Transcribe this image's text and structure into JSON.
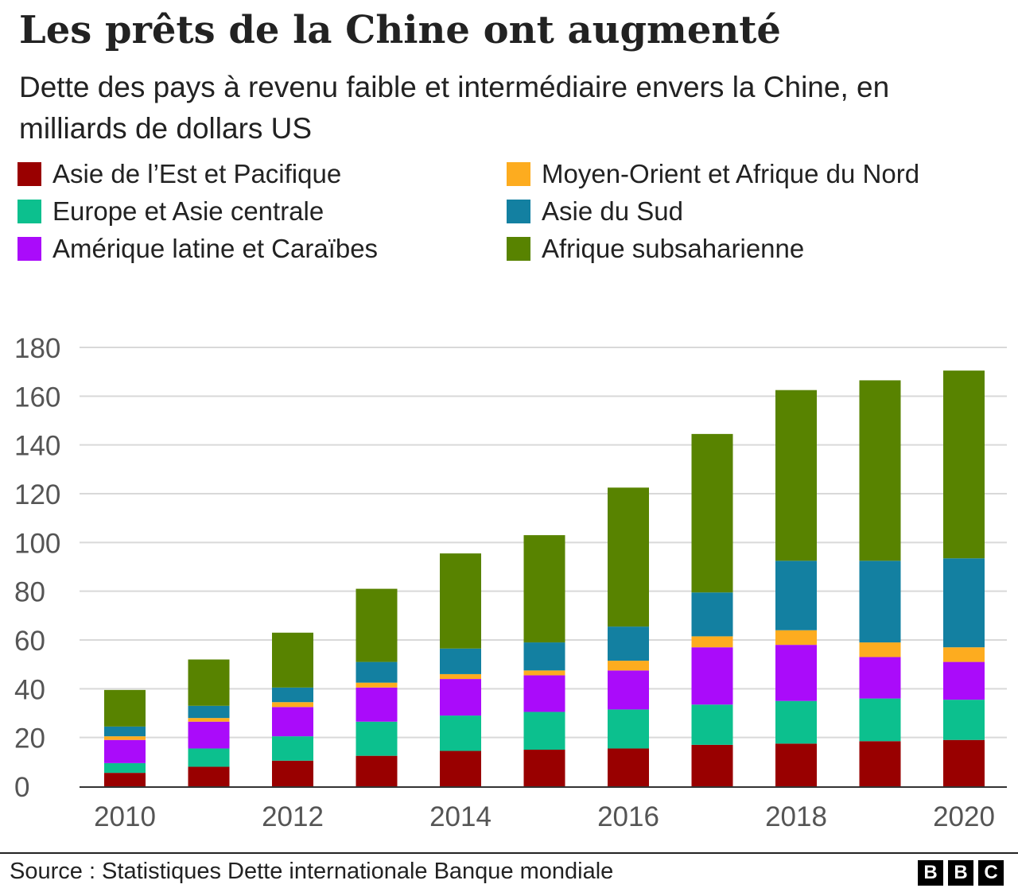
{
  "chart_data": {
    "type": "bar",
    "stacked": true,
    "title": "Les prêts de la Chine ont augmenté",
    "subtitle": "Dette des pays à revenu faible et intermédiaire envers la Chine, en milliards de dollars US",
    "categories": [
      "2010",
      "2011",
      "2012",
      "2013",
      "2014",
      "2015",
      "2016",
      "2017",
      "2018",
      "2019",
      "2020"
    ],
    "x_tick_labels": [
      "2010",
      "2012",
      "2014",
      "2016",
      "2018",
      "2020"
    ],
    "y_ticks": [
      0,
      20,
      40,
      60,
      80,
      100,
      120,
      140,
      160,
      180
    ],
    "ylim": [
      0,
      180
    ],
    "grid": "horizontal",
    "legend_position": "top",
    "series": [
      {
        "name": "Asie de l’Est et Pacifique",
        "color": "#990000",
        "values": [
          5.5,
          8,
          10.5,
          12.5,
          14.5,
          15,
          15.5,
          17,
          17.5,
          18.5,
          19
        ]
      },
      {
        "name": "Europe et Asie centrale",
        "color": "#0cc08e",
        "values": [
          4,
          7.5,
          10,
          14,
          14.5,
          15.5,
          16,
          16.5,
          17.5,
          17.5,
          16.5
        ]
      },
      {
        "name": "Amérique latine et Caraïbes",
        "color": "#aa0bfa",
        "values": [
          9.5,
          11,
          12,
          14,
          15,
          15,
          16,
          23.5,
          23,
          17,
          15.5
        ]
      },
      {
        "name": "Moyen-Orient et Afrique du Nord",
        "color": "#fdac1f",
        "values": [
          1.5,
          1.5,
          2,
          2,
          2,
          2,
          4,
          4.5,
          6,
          6,
          6
        ]
      },
      {
        "name": "Asie du Sud",
        "color": "#1380a1",
        "values": [
          4,
          5,
          6,
          8.5,
          10.5,
          11.5,
          14,
          18,
          28.5,
          33.5,
          36.5
        ]
      },
      {
        "name": "Afrique subsaharienne",
        "color": "#588300",
        "values": [
          15,
          19,
          22.5,
          30,
          39,
          44,
          57,
          65,
          70,
          74,
          77
        ]
      }
    ]
  },
  "legend": [
    {
      "label": "Asie de l’Est et Pacifique",
      "color": "#990000"
    },
    {
      "label": "Moyen-Orient et Afrique du Nord",
      "color": "#fdac1f"
    },
    {
      "label": "Europe et Asie centrale",
      "color": "#0cc08e"
    },
    {
      "label": "Asie du Sud",
      "color": "#1380a1"
    },
    {
      "label": "Amérique latine et Caraïbes",
      "color": "#aa0bfa"
    },
    {
      "label": "Afrique subsaharienne",
      "color": "#588300"
    }
  ],
  "footer": {
    "source": "Source : Statistiques Dette internationale Banque mondiale",
    "logo": [
      "B",
      "B",
      "C"
    ]
  }
}
